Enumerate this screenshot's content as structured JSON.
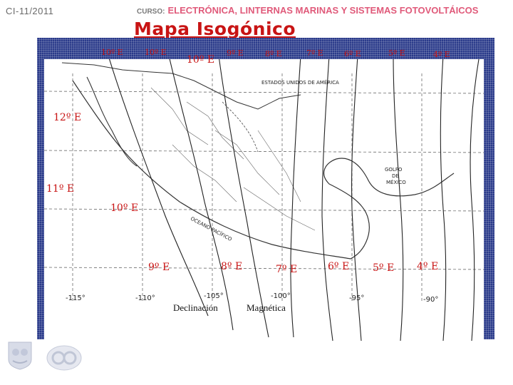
{
  "header": {
    "course_code": "CI-11/2011",
    "course_label": "CURSO:",
    "course_title": "ELECTRÓNICA, LINTERNAS MARINAS Y SISTEMAS FOTOVOLTÁICOS"
  },
  "title": "Mapa Isogónico",
  "top_labels": [
    "10º E",
    "10º E",
    "10º E",
    "9º E",
    "8º E",
    "7º E",
    "6º E",
    "5º E",
    "4º E"
  ],
  "left_labels": [
    "12º E",
    "11º E",
    "10º E"
  ],
  "bottom_labels": [
    "9º E",
    "8º E",
    "7º E",
    "6º E",
    "5º E",
    "4º E"
  ],
  "map_text": {
    "usa": "ESTADOS UNIDOS DE AMÉRICA",
    "gulf_line1": "GOLFO",
    "gulf_line2": "DE",
    "gulf_line3": "MÉXICO",
    "pacific": "OCEANO PACÍFICO"
  },
  "longitudes": [
    "-115°",
    "-110°",
    "-105°",
    "-100°",
    "-95°",
    "-90°"
  ],
  "caption": {
    "word1": "Declinación",
    "word2": "Magnética"
  },
  "colors": {
    "title": "#c81414",
    "course_title": "#e05a7a",
    "frame": "#2a3a8a"
  }
}
